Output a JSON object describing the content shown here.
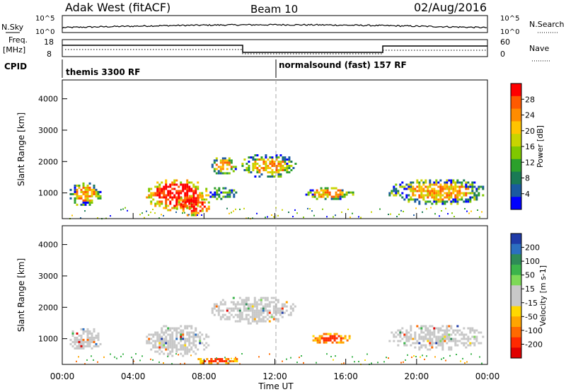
{
  "header": {
    "station": "Adak West (fitACF)",
    "beam": "Beam 10",
    "date": "02/Aug/2016"
  },
  "top_panels": {
    "nsky_label": "N.Sky",
    "nsky_ticks": [
      "10^5",
      "10^0"
    ],
    "nsearch_label": "N.Search",
    "freq_label": "Freq.",
    "freq_unit": "[MHz]",
    "freq_ticks": [
      "18",
      "8"
    ],
    "nave_label": "Nave",
    "nave_ticks": [
      "60",
      "0"
    ],
    "cpid_label": "CPID",
    "cpid_segments": [
      "themis 3300 RF",
      "normalsound (fast) 157 RF"
    ]
  },
  "colorbars": {
    "power": {
      "label": "Power [dB]",
      "ticks": [
        "28",
        "24",
        "20",
        "16",
        "12",
        "8",
        "4"
      ],
      "colors": [
        "#ff0000",
        "#ff5a00",
        "#ff8c00",
        "#ffc400",
        "#c8d400",
        "#80c800",
        "#2ca02c",
        "#1a7a55",
        "#1a5aa0",
        "#0000ff"
      ]
    },
    "velocity": {
      "label": "Velocity [m s-1]",
      "ticks": [
        "200",
        "100",
        "50",
        "15",
        "-15",
        "-50",
        "-100",
        "-200"
      ],
      "colors": [
        "#1f3ba8",
        "#2c6fc0",
        "#2e8b57",
        "#3cb44b",
        "#7ed957",
        "#c8c8c8",
        "#c8c8c8",
        "#ffd800",
        "#ffa500",
        "#ff6a00",
        "#ff2a00",
        "#e00000"
      ]
    }
  },
  "axes": {
    "ylabel": "Slant Range [km]",
    "xlabel": "Time UT",
    "yticks": [
      "1000",
      "2000",
      "3000",
      "4000"
    ],
    "xticks": [
      "00:00",
      "04:00",
      "08:00",
      "12:00",
      "16:00",
      "20:00",
      "00:00"
    ]
  },
  "chart_data": [
    {
      "type": "heatmap",
      "name": "power",
      "x_unit": "hours UT",
      "y_unit": "km",
      "xlim": [
        0,
        24
      ],
      "ylim": [
        180,
        4600
      ],
      "regions": [
        {
          "x": [
            0.3,
            2.2
          ],
          "y": [
            600,
            1400
          ],
          "level": "medium"
        },
        {
          "x": [
            4.6,
            8.2
          ],
          "y": [
            450,
            1500
          ],
          "level": "high"
        },
        {
          "x": [
            6.3,
            8.3
          ],
          "y": [
            300,
            1000
          ],
          "level": "high"
        },
        {
          "x": [
            8.2,
            9.8
          ],
          "y": [
            800,
            1250
          ],
          "level": "low"
        },
        {
          "x": [
            8.3,
            9.8
          ],
          "y": [
            1600,
            2200
          ],
          "level": "medium"
        },
        {
          "x": [
            10.0,
            13.2
          ],
          "y": [
            1500,
            2300
          ],
          "level": "medium"
        },
        {
          "x": [
            13.6,
            16.4
          ],
          "y": [
            800,
            1250
          ],
          "level": "medium"
        },
        {
          "x": [
            18.3,
            24.0
          ],
          "y": [
            650,
            1500
          ],
          "level": "medium"
        }
      ]
    },
    {
      "type": "heatmap",
      "name": "velocity",
      "x_unit": "hours UT",
      "y_unit": "km",
      "xlim": [
        0,
        24
      ],
      "ylim": [
        180,
        4600
      ],
      "regions": [
        {
          "x": [
            0.3,
            2.2
          ],
          "y": [
            600,
            1400
          ],
          "level": "near-zero"
        },
        {
          "x": [
            4.6,
            8.3
          ],
          "y": [
            450,
            1500
          ],
          "level": "near-zero"
        },
        {
          "x": [
            8.3,
            13.2
          ],
          "y": [
            1500,
            2400
          ],
          "level": "near-zero"
        },
        {
          "x": [
            14.0,
            16.3
          ],
          "y": [
            850,
            1250
          ],
          "level": "negative"
        },
        {
          "x": [
            18.3,
            24.0
          ],
          "y": [
            650,
            1500
          ],
          "level": "near-zero"
        },
        {
          "x": [
            7.4,
            10.0
          ],
          "y": [
            200,
            450
          ],
          "level": "negative"
        }
      ]
    }
  ]
}
